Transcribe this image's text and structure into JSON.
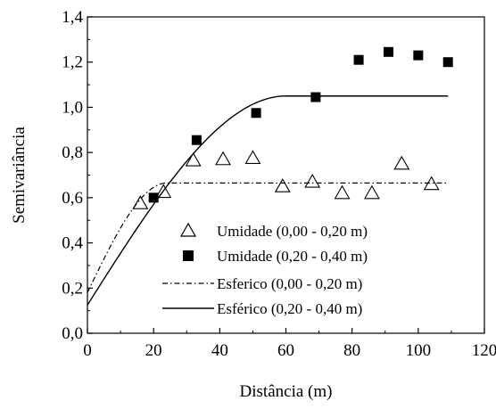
{
  "chart_data": {
    "type": "scatter",
    "xlabel": "Distância (m)",
    "ylabel": "Semivariância",
    "xlim": [
      0,
      120
    ],
    "ylim": [
      0.0,
      1.4
    ],
    "x_ticks": [
      0,
      20,
      40,
      60,
      80,
      100,
      120
    ],
    "x_tick_labels": [
      "0",
      "20",
      "40",
      "60",
      "80",
      "100",
      "120"
    ],
    "y_ticks": [
      0.0,
      0.2,
      0.4,
      0.6,
      0.8,
      1.0,
      1.2,
      1.4
    ],
    "y_tick_labels": [
      "0,0",
      "0,2",
      "0,4",
      "0,6",
      "0,8",
      "1,0",
      "1,2",
      "1,4"
    ],
    "grid": false,
    "legend_position": "lower-right",
    "series": [
      {
        "name": "Umidade (0,00 - 0,20 m)",
        "kind": "points",
        "marker": "open-triangle",
        "x": [
          16,
          23,
          32,
          41,
          50,
          59,
          68,
          77,
          86,
          95,
          104
        ],
        "y": [
          0.575,
          0.625,
          0.765,
          0.77,
          0.775,
          0.65,
          0.67,
          0.62,
          0.62,
          0.75,
          0.66
        ]
      },
      {
        "name": "Umidade (0,20 - 0,40 m)",
        "kind": "points",
        "marker": "filled-square",
        "x": [
          20,
          33,
          51,
          69,
          82,
          91,
          100,
          109
        ],
        "y": [
          0.6,
          0.855,
          0.975,
          1.045,
          1.21,
          1.245,
          1.23,
          1.2
        ]
      },
      {
        "name": "Esferico (0,00 - 0,20 m)",
        "kind": "spherical-model",
        "line_style": "dash-dot",
        "nugget": 0.18,
        "sill": 0.665,
        "range": 24,
        "x_end": 109
      },
      {
        "name": "Esférico (0,20 - 0,40 m)",
        "kind": "spherical-model",
        "line_style": "solid",
        "nugget": 0.125,
        "sill": 1.05,
        "range": 60,
        "x_end": 109
      }
    ]
  }
}
